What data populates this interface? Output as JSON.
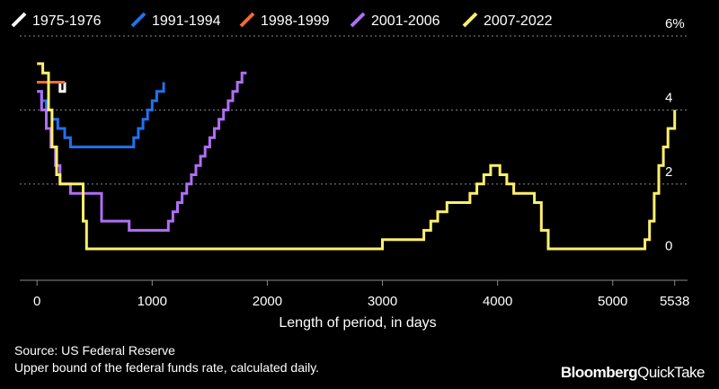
{
  "chart_data": {
    "type": "line",
    "step": true,
    "title": "",
    "xlabel": "Length of period, in days",
    "ylabel": "",
    "xlim": [
      -150,
      5650
    ],
    "ylim": [
      -0.6,
      6
    ],
    "x_ticks": [
      {
        "value": 0,
        "label": "0"
      },
      {
        "value": 1000,
        "label": "1000"
      },
      {
        "value": 2000,
        "label": "2000"
      },
      {
        "value": 3000,
        "label": "3000"
      },
      {
        "value": 4000,
        "label": "4000"
      },
      {
        "value": 5000,
        "label": "5000"
      },
      {
        "value": 5538,
        "label": "5538"
      }
    ],
    "y_ticks": [
      {
        "value": 0,
        "label": "0"
      },
      {
        "value": 2,
        "label": "2"
      },
      {
        "value": 4,
        "label": "4"
      },
      {
        "value": 6,
        "label": "6%"
      }
    ],
    "grid": "horizontal dotted",
    "series": [
      {
        "name": "1975-1976",
        "color": "#ffffff",
        "x": [
          0,
          100,
          200,
          240
        ],
        "y": [
          4.75,
          4.75,
          4.5,
          4.75
        ]
      },
      {
        "name": "1991-1994",
        "color": "#1f72f0",
        "x": [
          0,
          40,
          80,
          130,
          180,
          240,
          290,
          800,
          840,
          880,
          920,
          960,
          1000,
          1040,
          1100
        ],
        "y": [
          4.5,
          4.25,
          4.0,
          3.75,
          3.5,
          3.25,
          3.0,
          3.0,
          3.25,
          3.5,
          3.75,
          4.0,
          4.25,
          4.5,
          4.75
        ]
      },
      {
        "name": "1998-1999",
        "color": "#f26b38",
        "x": [
          0,
          240
        ],
        "y": [
          4.75,
          4.75
        ]
      },
      {
        "name": "2001-2006",
        "color": "#b06ef5",
        "x": [
          0,
          40,
          80,
          120,
          160,
          200,
          290,
          560,
          800,
          1140,
          1180,
          1220,
          1260,
          1300,
          1340,
          1380,
          1420,
          1460,
          1500,
          1540,
          1580,
          1620,
          1660,
          1700,
          1740,
          1780,
          1820
        ],
        "y": [
          4.5,
          4.0,
          3.5,
          3.0,
          2.5,
          2.0,
          1.75,
          1.0,
          0.75,
          1.0,
          1.25,
          1.5,
          1.75,
          2.0,
          2.25,
          2.5,
          2.75,
          3.0,
          3.25,
          3.5,
          3.75,
          4.0,
          4.25,
          4.5,
          4.75,
          5.0,
          5.0
        ]
      },
      {
        "name": "2007-2022",
        "color": "#fff06b",
        "x": [
          0,
          50,
          100,
          130,
          170,
          200,
          400,
          430,
          460,
          3000,
          3360,
          3420,
          3480,
          3560,
          3760,
          3820,
          3880,
          3940,
          4020,
          4080,
          4140,
          4320,
          4380,
          4440,
          4560,
          4575,
          5280,
          5320,
          5360,
          5400,
          5440,
          5480,
          5538
        ],
        "y": [
          5.25,
          5.0,
          4.0,
          3.0,
          2.25,
          2.0,
          1.0,
          0.25,
          0.25,
          0.5,
          0.75,
          1.0,
          1.25,
          1.5,
          1.75,
          2.0,
          2.25,
          2.5,
          2.25,
          2.0,
          1.75,
          1.5,
          0.75,
          0.25,
          0.25,
          0.25,
          0.5,
          1.0,
          1.75,
          2.5,
          3.0,
          3.5,
          4.0
        ]
      }
    ]
  },
  "footer": {
    "source": "Source: US Federal Reserve",
    "note": "Upper bound of the federal funds rate, calculated daily."
  },
  "brand": {
    "name": "Bloomberg",
    "product": "QuickTake"
  }
}
